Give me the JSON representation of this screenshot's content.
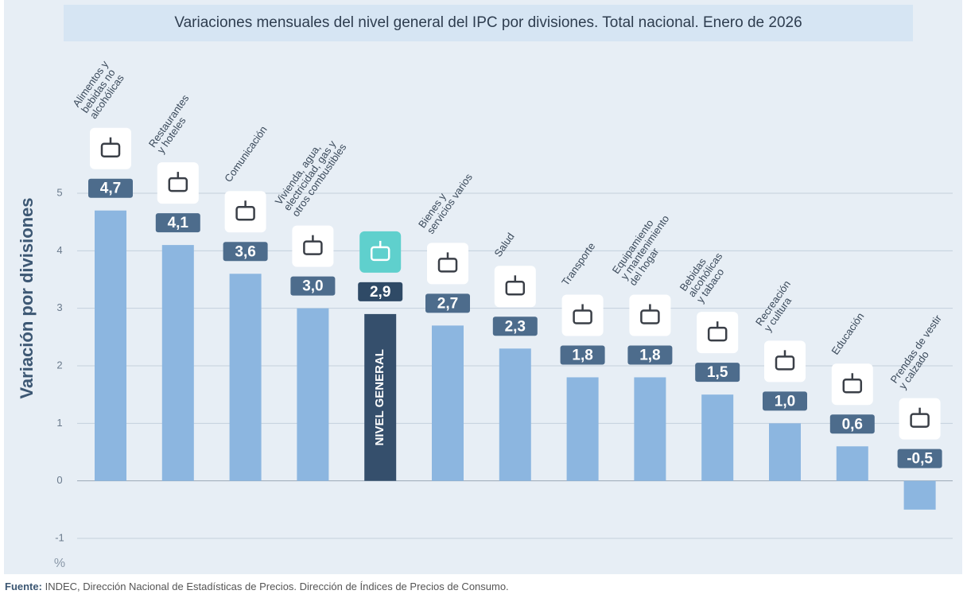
{
  "chart_data": {
    "type": "bar",
    "title": "Variaciones mensuales del nivel general del IPC por divisiones. Total nacional. Enero de 2026",
    "y_axis_label": "Variación por divisiones",
    "y_unit": "%",
    "categories": [
      "Alimentos y\nbebidas no\nalcohólicas",
      "Restaurantes\ny hoteles",
      "Comunicación",
      "Vivienda, agua,\nelectricidad, gas y\notros combustibles",
      "NIVEL GENERAL",
      "Bienes y\nservicios varios",
      "Salud",
      "Transporte",
      "Equipamiento\ny mantenimiento\ndel hogar",
      "Bebidas\nalcohólicas\ny tabaco",
      "Recreación\ny cultura",
      "Educación",
      "Prendas de vestir\ny calzado"
    ],
    "values": [
      4.7,
      4.1,
      3.6,
      3.0,
      2.9,
      2.7,
      2.3,
      1.8,
      1.8,
      1.5,
      1.0,
      0.6,
      -0.5
    ],
    "value_labels": [
      "4,7",
      "4,1",
      "3,6",
      "3,0",
      "2,9",
      "2,7",
      "2,3",
      "1,8",
      "1,8",
      "1,5",
      "1,0",
      "0,6",
      "-0,5"
    ],
    "color": "#8cb6e0",
    "highlight_color": "#354f6c",
    "highlight_index": 4,
    "ylim": [
      -1,
      5
    ],
    "yticks": [
      -1,
      0,
      1,
      2,
      3,
      4,
      5
    ],
    "grid": true,
    "source_label": "Fuente:",
    "source": "INDEC, Dirección Nacional de Estadísticas de Precios. Dirección de Índices de Precios de Consumo."
  }
}
